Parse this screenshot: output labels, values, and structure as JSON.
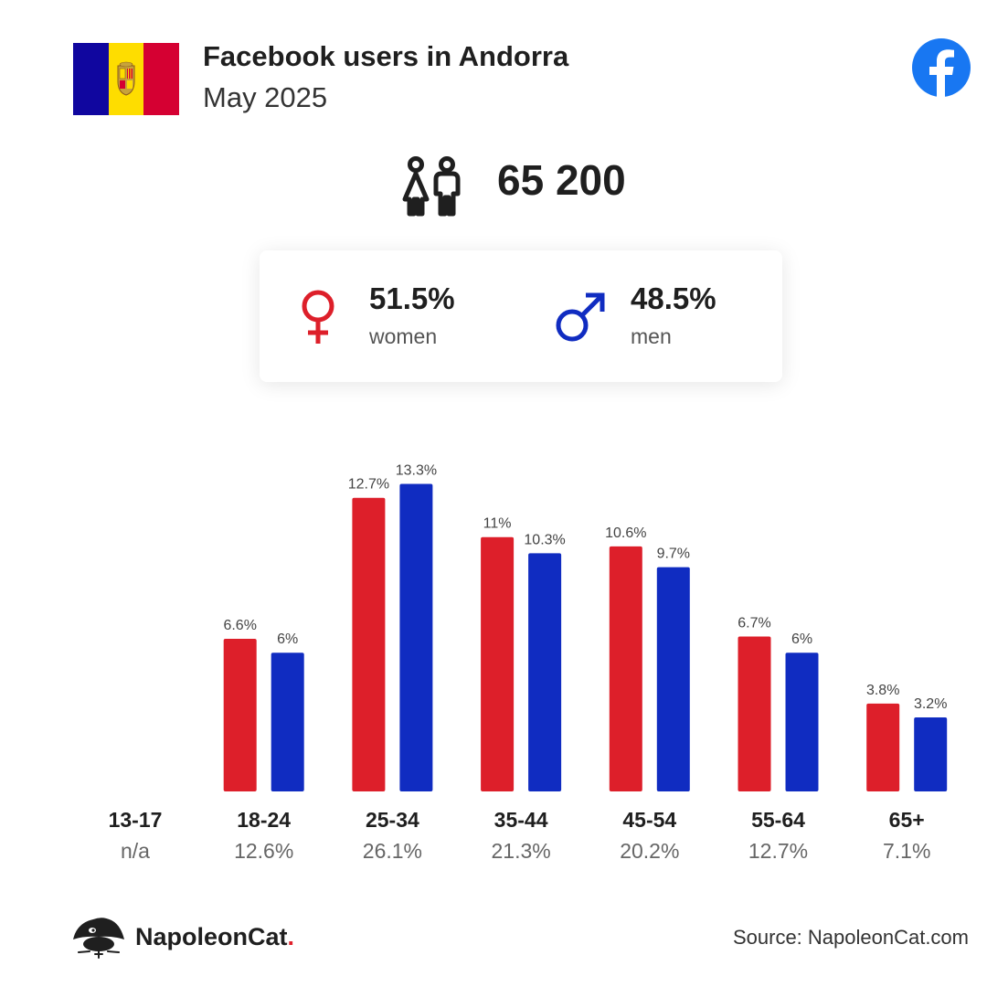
{
  "header": {
    "title": "Facebook users in Andorra",
    "subtitle": "May 2025"
  },
  "flag": {
    "colors": [
      "#10069f",
      "#fedd00",
      "#d50032"
    ]
  },
  "icons": {
    "brand": "facebook-icon",
    "total": "people-icon",
    "women": "female-symbol-icon",
    "men": "male-symbol-icon",
    "logo": "napoleoncat-logo-icon"
  },
  "colors": {
    "women": "#dd1f2a",
    "men": "#102cc1",
    "facebook": "#1877f2"
  },
  "summary": {
    "total": "65 200",
    "women": {
      "pct": "51.5%",
      "label": "women"
    },
    "men": {
      "pct": "48.5%",
      "label": "men"
    }
  },
  "chart_data": {
    "type": "bar",
    "categories": [
      "13-17",
      "18-24",
      "25-34",
      "35-44",
      "45-54",
      "55-64",
      "65+"
    ],
    "category_share": [
      "n/a",
      "12.6%",
      "26.1%",
      "21.3%",
      "20.2%",
      "12.7%",
      "7.1%"
    ],
    "series": [
      {
        "name": "women",
        "values": [
          null,
          6.6,
          12.7,
          11,
          10.6,
          6.7,
          3.8
        ],
        "labels": [
          "",
          "6.6%",
          "12.7%",
          "11%",
          "10.6%",
          "6.7%",
          "3.8%"
        ]
      },
      {
        "name": "men",
        "values": [
          null,
          6,
          13.3,
          10.3,
          9.7,
          6,
          3.2
        ],
        "labels": [
          "",
          "6%",
          "13.3%",
          "10.3%",
          "9.7%",
          "6%",
          "3.2%"
        ]
      }
    ],
    "grid": false,
    "legend": "none"
  },
  "footer": {
    "brand": "NapoleonCat",
    "brand_dot": ".",
    "source": "Source: NapoleonCat.com"
  }
}
